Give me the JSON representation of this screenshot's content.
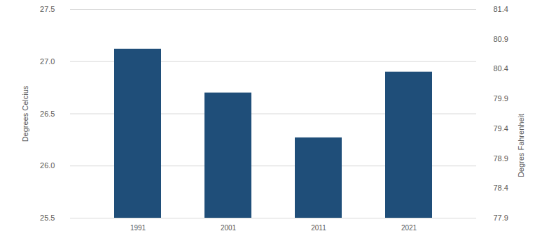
{
  "chart_data": {
    "type": "bar",
    "categories": [
      "1991",
      "2001",
      "2011",
      "2021"
    ],
    "values": [
      27.12,
      26.7,
      26.27,
      26.9
    ],
    "color": "#1f4e79",
    "y_label": "Degrees Celcius",
    "ylim": [
      25.5,
      27.5
    ],
    "yticks": [
      25.5,
      {
        "value": 26,
        "label": "26.0"
      },
      26.5,
      {
        "value": 27,
        "label": "27.0"
      },
      27.5
    ],
    "y2_label": "Degres Fahrenheit",
    "y2lim": [
      77.9,
      81.4
    ],
    "y2ticks": [
      77.9,
      78.4,
      78.9,
      79.4,
      79.9,
      80.4,
      80.9,
      81.4
    ],
    "grid": true
  }
}
